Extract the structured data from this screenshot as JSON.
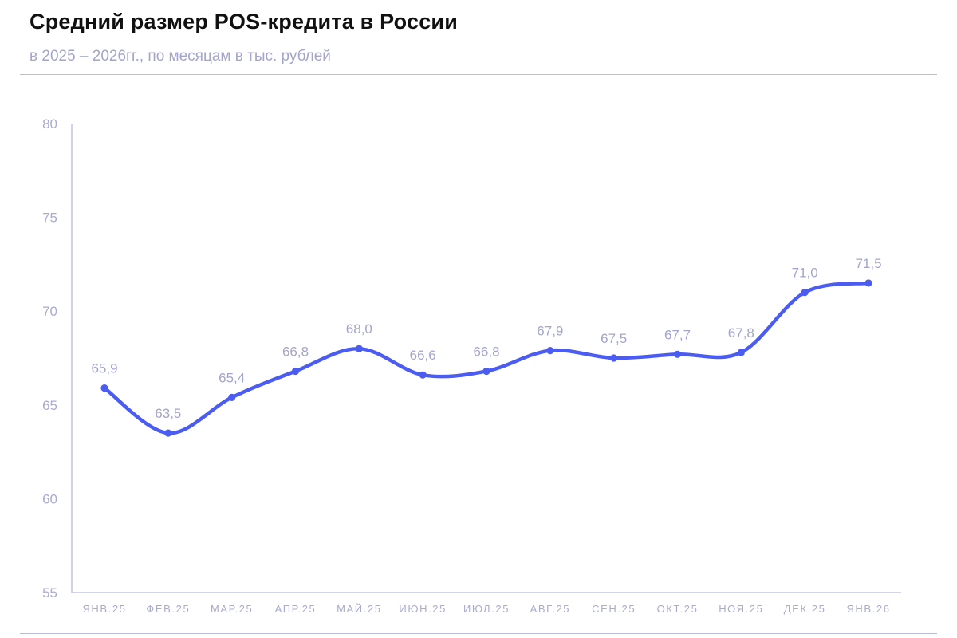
{
  "header": {
    "title": "Средний размер POS-кредита в России",
    "subtitle": "в 2025 – 2026гг., по месяцам в тыс. рублей"
  },
  "colors": {
    "line": "#4a5cf2",
    "axis": "#b9bbdc",
    "label": "#a9abd0"
  },
  "chart_data": {
    "type": "line",
    "categories": [
      "ЯНВ.25",
      "ФЕВ.25",
      "МАР.25",
      "АПР.25",
      "МАЙ.25",
      "ИЮН.25",
      "ИЮЛ.25",
      "АВГ.25",
      "СЕН.25",
      "ОКТ.25",
      "НОЯ.25",
      "ДЕК.25",
      "ЯНВ.26"
    ],
    "series": [
      {
        "values": [
          65.9,
          63.5,
          65.4,
          66.8,
          68.0,
          66.6,
          66.8,
          67.9,
          67.5,
          67.7,
          67.8,
          71.0,
          71.5
        ],
        "labels": [
          "65,9",
          "63,5",
          "65,4",
          "66,8",
          "68,0",
          "66,6",
          "66,8",
          "67,9",
          "67,5",
          "67,7",
          "67,8",
          "71,0",
          "71,5"
        ]
      }
    ],
    "ylim": [
      55,
      80
    ],
    "yticks": [
      "55",
      "60",
      "65",
      "70",
      "75",
      "80"
    ],
    "xlabel": "",
    "ylabel": "",
    "grid": false,
    "smooth": true
  }
}
